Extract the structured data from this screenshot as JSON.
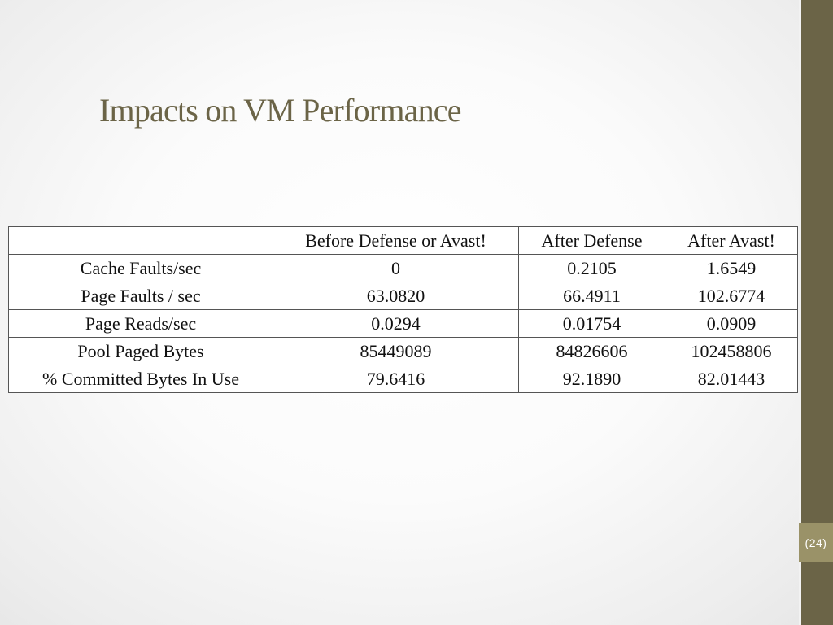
{
  "slide": {
    "title": "Impacts on VM Performance",
    "page_number": "24",
    "accent_color": "#6b6447",
    "page_box_color": "#9a9268"
  },
  "table": {
    "headers": [
      "",
      "Before Defense or Avast!",
      "After Defense",
      "After Avast!"
    ],
    "rows": [
      [
        "Cache Faults/sec",
        "0",
        "0.2105",
        "1.6549"
      ],
      [
        "Page Faults / sec",
        "63.0820",
        "66.4911",
        "102.6774"
      ],
      [
        "Page Reads/sec",
        "0.0294",
        "0.01754",
        "0.0909"
      ],
      [
        "Pool Paged Bytes",
        "85449089",
        "84826606",
        "102458806"
      ],
      [
        "% Committed Bytes In Use",
        "79.6416",
        "92.1890",
        "82.01443"
      ]
    ]
  }
}
